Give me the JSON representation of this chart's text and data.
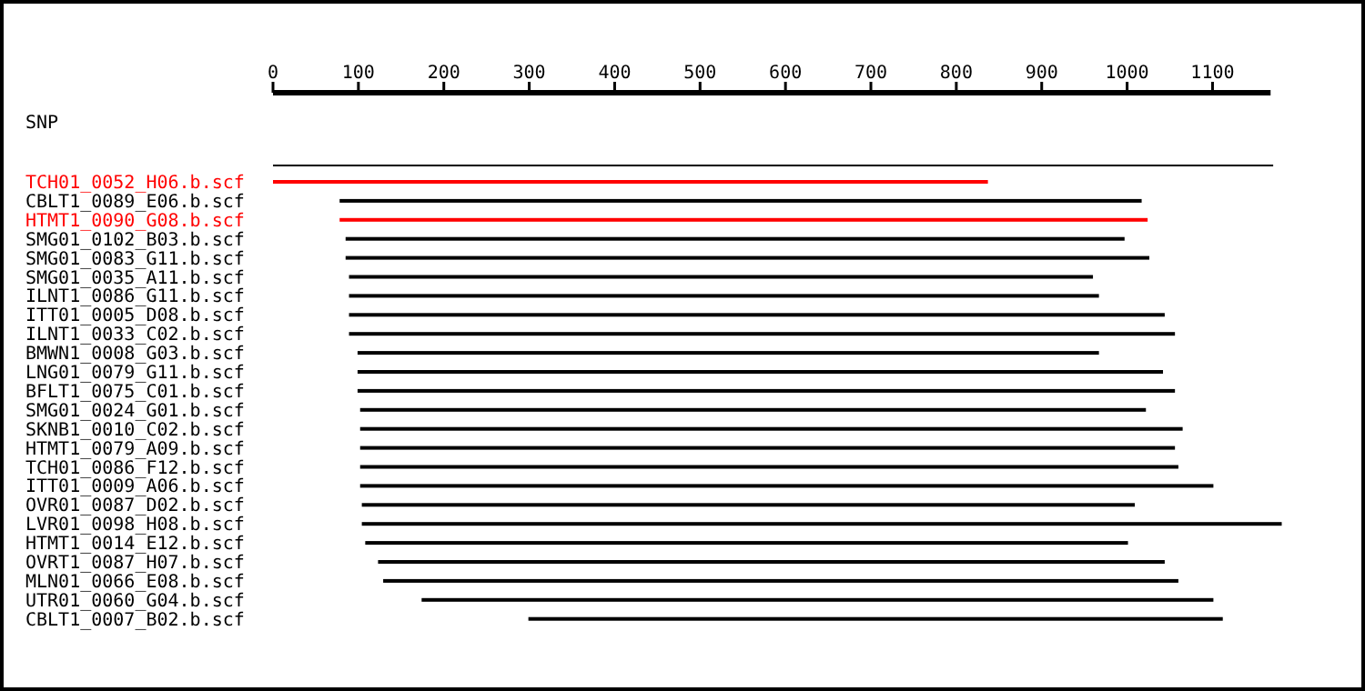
{
  "chart_data": {
    "type": "bar",
    "orientation": "horizontal",
    "grid": false,
    "categories": [
      "SNP",
      null,
      "TCH01_0052_H06.b.scf",
      "CBLT1_0089_E06.b.scf",
      "HTMT1_0090_G08.b.scf",
      "SMG01_0102_B03.b.scf",
      "SMG01_0083_G11.b.scf",
      "SMG01_0035_A11.b.scf",
      "ILNT1_0086_G11.b.scf",
      "ITT01_0005_D08.b.scf",
      "ILNT1_0033_C02.b.scf",
      "BMWN1_0008_G03.b.scf",
      "LNG01_0079_G11.b.scf",
      "BFLT1_0075_C01.b.scf",
      "SMG01_0024_G01.b.scf",
      "SKNB1_0010_C02.b.scf",
      "HTMT1_0079_A09.b.scf",
      "TCH01_0086_F12.b.scf",
      "ITT01_0009_A06.b.scf",
      "OVR01_0087_D02.b.scf",
      "LVR01_0098_H08.b.scf",
      "HTMT1_0014_E12.b.scf",
      "OVRT1_0087_H07.b.scf",
      "MLN01_0066_E08.b.scf",
      "UTR01_0060_G04.b.scf",
      "CBLT1_0007_B02.b.scf"
    ],
    "base": [
      null,
      0,
      0,
      78,
      78,
      85,
      85,
      89,
      89,
      89,
      89,
      99,
      99,
      99,
      102,
      102,
      102,
      102,
      102,
      104,
      104,
      108,
      123,
      129,
      174,
      299
    ],
    "values": [
      null,
      1171,
      837,
      939,
      946,
      912,
      941,
      871,
      878,
      955,
      967,
      868,
      943,
      957,
      920,
      963,
      954,
      958,
      999,
      905,
      1077,
      893,
      921,
      931,
      927,
      813
    ],
    "colors": [
      "#000000",
      "#000000",
      "#ff0000",
      "#000000",
      "#ff0000",
      "#000000",
      "#000000",
      "#000000",
      "#000000",
      "#000000",
      "#000000",
      "#000000",
      "#000000",
      "#000000",
      "#000000",
      "#000000",
      "#000000",
      "#000000",
      "#000000",
      "#000000",
      "#000000",
      "#000000",
      "#000000",
      "#000000",
      "#000000",
      "#000000"
    ],
    "xlim": [
      0,
      1185
    ],
    "xticks": [
      0,
      100,
      200,
      300,
      400,
      500,
      600,
      700,
      800,
      900,
      1000,
      1100
    ]
  }
}
